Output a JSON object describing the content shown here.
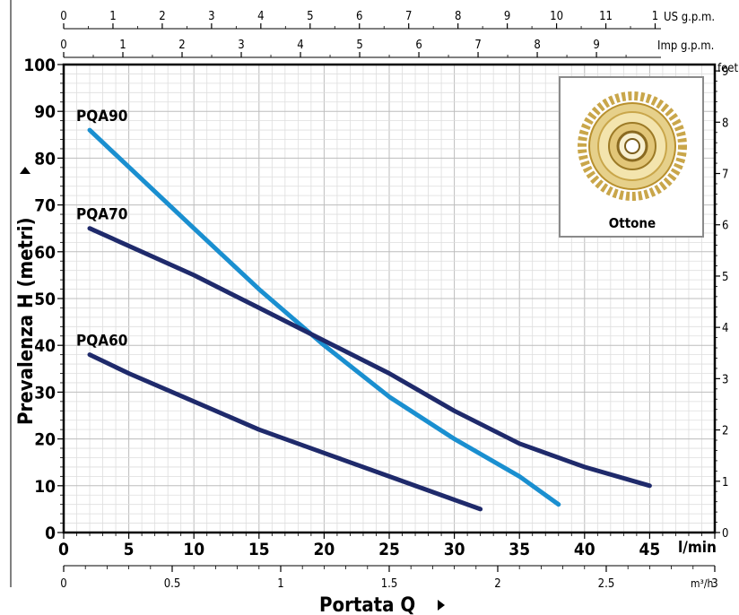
{
  "chart_data": {
    "type": "line",
    "title": "",
    "xlabel": "Portata Q",
    "ylabel": "Prevalenza H (metri)",
    "x_unit": "l/min",
    "xlim": [
      0,
      50
    ],
    "ylim": [
      0,
      100
    ],
    "x_ticks": [
      "0",
      "5",
      "10",
      "15",
      "20",
      "25",
      "30",
      "35",
      "40",
      "45"
    ],
    "y_ticks": [
      "0",
      "10",
      "20",
      "30",
      "40",
      "50",
      "60",
      "70",
      "80",
      "90",
      "100"
    ],
    "grid": true,
    "series": [
      {
        "name": "PQA90",
        "color": "#1a8fd0",
        "x": [
          2,
          10,
          15,
          20,
          25,
          30,
          35,
          38
        ],
        "y": [
          86,
          65,
          52,
          40,
          29,
          20,
          12,
          6
        ]
      },
      {
        "name": "PQA70",
        "color": "#1f2a6b",
        "x": [
          2,
          10,
          15,
          20,
          25,
          30,
          35,
          40,
          45
        ],
        "y": [
          65,
          55,
          48,
          41,
          34,
          26,
          19,
          14,
          10
        ]
      },
      {
        "name": "PQA60",
        "color": "#1f2a6b",
        "x": [
          2,
          5,
          10,
          15,
          20,
          25,
          30,
          32
        ],
        "y": [
          38,
          34,
          28,
          22,
          17,
          12,
          7,
          5
        ]
      }
    ],
    "secondary_axes": {
      "us_gpm": {
        "unit": "US g.p.m.",
        "ticks": [
          "0",
          "1",
          "2",
          "3",
          "4",
          "5",
          "6",
          "7",
          "8",
          "9",
          "10",
          "11",
          "1"
        ]
      },
      "imp_gpm": {
        "unit": "Imp g.p.m.",
        "ticks": [
          "0",
          "1",
          "2",
          "3",
          "4",
          "5",
          "6",
          "7",
          "8",
          "9"
        ]
      },
      "feet": {
        "unit": "feet",
        "ticks": [
          "0",
          "1",
          "2",
          "3",
          "4",
          "5",
          "6",
          "7",
          "8",
          "9"
        ]
      },
      "m3h": {
        "unit": "m³/h",
        "ticks": [
          "0",
          "0.5",
          "1",
          "1.5",
          "2",
          "2.5",
          "3"
        ]
      }
    },
    "inset": {
      "caption": "Ottone",
      "icon": "impeller-image"
    }
  }
}
